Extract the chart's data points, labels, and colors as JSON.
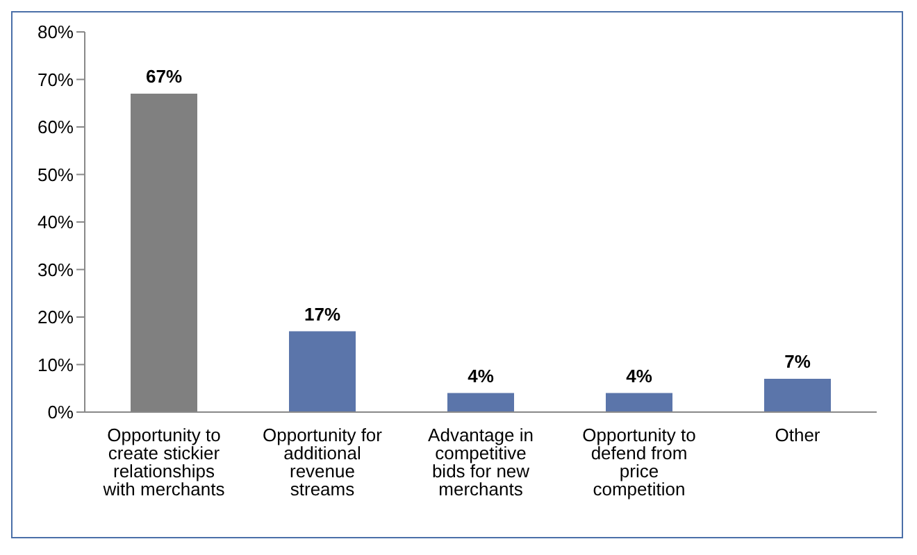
{
  "chart_data": {
    "type": "bar",
    "categories": [
      "Opportunity to create stickier relationships with merchants",
      "Opportunity for additional revenue streams",
      "Advantage in competitive bids for new merchants",
      "Opportunity to defend from price competition",
      "Other"
    ],
    "values": [
      67,
      17,
      4,
      4,
      7
    ],
    "colors": [
      "#808080",
      "#5b75aa",
      "#5b75aa",
      "#5b75aa",
      "#5b75aa"
    ],
    "value_labels": [
      "67%",
      "17%",
      "4%",
      "4%",
      "7%"
    ],
    "ylim": [
      0,
      80
    ],
    "yticks": [
      {
        "value": 0,
        "label": "0%"
      },
      {
        "value": 10,
        "label": "10%"
      },
      {
        "value": 20,
        "label": "20%"
      },
      {
        "value": 30,
        "label": "30%"
      },
      {
        "value": 40,
        "label": "40%"
      },
      {
        "value": 50,
        "label": "50%"
      },
      {
        "value": 60,
        "label": "60%"
      },
      {
        "value": 70,
        "label": "70%"
      },
      {
        "value": 80,
        "label": "80%"
      }
    ],
    "grid": false,
    "legend": false
  }
}
